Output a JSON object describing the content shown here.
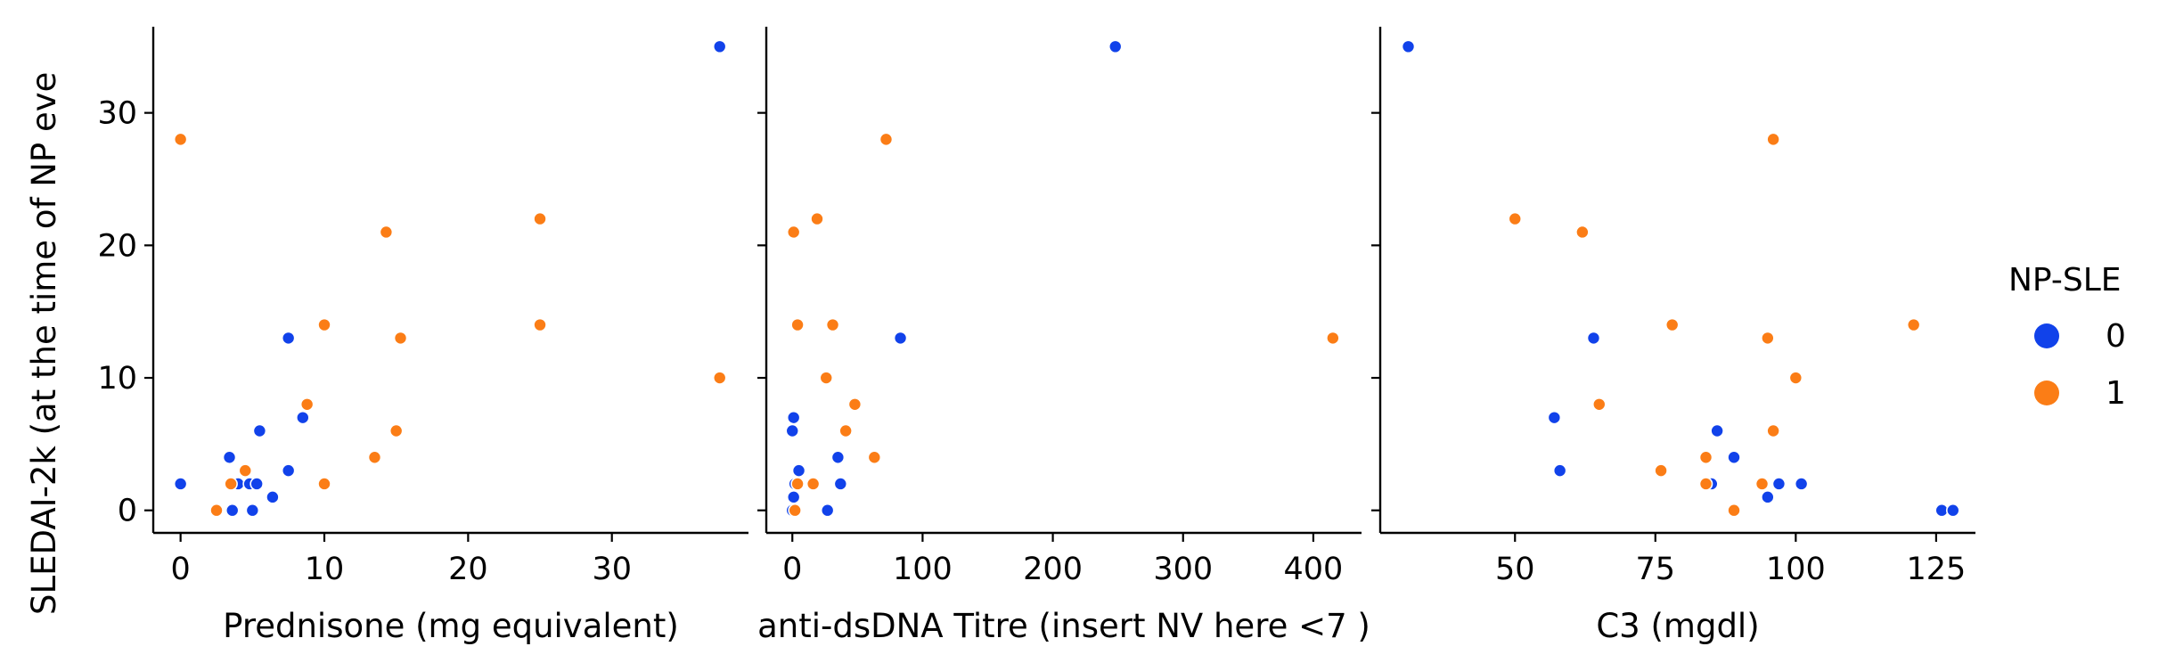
{
  "chart_data": {
    "type": "scatter",
    "y_label": "SLEDAI-2k (at the time of NP eve",
    "y_ticks": [
      "0",
      "10",
      "20",
      "30"
    ],
    "y_values": [
      0,
      10,
      20,
      30
    ],
    "ylim": [
      -1.7,
      36.5
    ],
    "grid": false,
    "legend": {
      "position": "right",
      "title": "NP-SLE",
      "entries": [
        {
          "label": "0",
          "color": "#1142ea"
        },
        {
          "label": "1",
          "color": "#fb7d16"
        }
      ]
    },
    "panels": [
      {
        "xlabel": "Prednisone  (mg equivalent)",
        "xlim": [
          -1.9,
          39.5
        ],
        "x_ticks": [
          "0",
          "10",
          "20",
          "30"
        ],
        "x_values": [
          0,
          10,
          20,
          30
        ],
        "points": [
          {
            "x": 37.5,
            "y": 35,
            "g": 0
          },
          {
            "x": 7.5,
            "y": 13,
            "g": 0
          },
          {
            "x": 8.5,
            "y": 7,
            "g": 0
          },
          {
            "x": 5.5,
            "y": 6,
            "g": 0
          },
          {
            "x": 3.4,
            "y": 4,
            "g": 0
          },
          {
            "x": 7.5,
            "y": 3,
            "g": 0
          },
          {
            "x": 0,
            "y": 2,
            "g": 0
          },
          {
            "x": 4.0,
            "y": 2,
            "g": 0
          },
          {
            "x": 4.8,
            "y": 2,
            "g": 0
          },
          {
            "x": 5.3,
            "y": 2,
            "g": 0
          },
          {
            "x": 6.4,
            "y": 1,
            "g": 0
          },
          {
            "x": 3.6,
            "y": 0,
            "g": 0
          },
          {
            "x": 5.0,
            "y": 0,
            "g": 0
          },
          {
            "x": 0,
            "y": 28,
            "g": 1
          },
          {
            "x": 25,
            "y": 22,
            "g": 1
          },
          {
            "x": 14.3,
            "y": 21,
            "g": 1
          },
          {
            "x": 10,
            "y": 14,
            "g": 1
          },
          {
            "x": 25,
            "y": 14,
            "g": 1
          },
          {
            "x": 15.3,
            "y": 13,
            "g": 1
          },
          {
            "x": 37.5,
            "y": 10,
            "g": 1
          },
          {
            "x": 8.8,
            "y": 8,
            "g": 1
          },
          {
            "x": 15,
            "y": 6,
            "g": 1
          },
          {
            "x": 13.5,
            "y": 4,
            "g": 1
          },
          {
            "x": 4.5,
            "y": 3,
            "g": 1
          },
          {
            "x": 3.5,
            "y": 2,
            "g": 1
          },
          {
            "x": 10,
            "y": 2,
            "g": 1
          },
          {
            "x": 2.5,
            "y": 0,
            "g": 1
          }
        ]
      },
      {
        "xlabel": "anti-dsDNA Titre  (insert NV here <7 )",
        "xlim": [
          -20,
          437
        ],
        "x_ticks": [
          "0",
          "100",
          "200",
          "300",
          "400"
        ],
        "x_values": [
          0,
          100,
          200,
          300,
          400
        ],
        "points": [
          {
            "x": 248,
            "y": 35,
            "g": 0
          },
          {
            "x": 83,
            "y": 13,
            "g": 0
          },
          {
            "x": 1,
            "y": 7,
            "g": 0
          },
          {
            "x": 0,
            "y": 6,
            "g": 0
          },
          {
            "x": 35,
            "y": 4,
            "g": 0
          },
          {
            "x": 5,
            "y": 3,
            "g": 0
          },
          {
            "x": 2,
            "y": 2,
            "g": 0
          },
          {
            "x": 37,
            "y": 2,
            "g": 0
          },
          {
            "x": 1,
            "y": 1,
            "g": 0
          },
          {
            "x": 0,
            "y": 0,
            "g": 0
          },
          {
            "x": 27,
            "y": 0,
            "g": 0
          },
          {
            "x": 72,
            "y": 28,
            "g": 1
          },
          {
            "x": 19,
            "y": 22,
            "g": 1
          },
          {
            "x": 1,
            "y": 21,
            "g": 1
          },
          {
            "x": 4,
            "y": 14,
            "g": 1
          },
          {
            "x": 31,
            "y": 14,
            "g": 1
          },
          {
            "x": 415,
            "y": 13,
            "g": 1
          },
          {
            "x": 26,
            "y": 10,
            "g": 1
          },
          {
            "x": 48,
            "y": 8,
            "g": 1
          },
          {
            "x": 41,
            "y": 6,
            "g": 1
          },
          {
            "x": 63,
            "y": 4,
            "g": 1
          },
          {
            "x": 4,
            "y": 2,
            "g": 1
          },
          {
            "x": 16,
            "y": 2,
            "g": 1
          },
          {
            "x": 2,
            "y": 0,
            "g": 1
          }
        ]
      },
      {
        "xlabel": "C3 (mgdl)",
        "xlim": [
          26,
          132
        ],
        "x_ticks": [
          "50",
          "75",
          "100",
          "125"
        ],
        "x_values": [
          50,
          75,
          100,
          125
        ],
        "points": [
          {
            "x": 31,
            "y": 35,
            "g": 0
          },
          {
            "x": 64,
            "y": 13,
            "g": 0
          },
          {
            "x": 57,
            "y": 7,
            "g": 0
          },
          {
            "x": 86,
            "y": 6,
            "g": 0
          },
          {
            "x": 89,
            "y": 4,
            "g": 0
          },
          {
            "x": 58,
            "y": 3,
            "g": 0
          },
          {
            "x": 85,
            "y": 2,
            "g": 0
          },
          {
            "x": 97,
            "y": 2,
            "g": 0
          },
          {
            "x": 101,
            "y": 2,
            "g": 0
          },
          {
            "x": 95,
            "y": 1,
            "g": 0
          },
          {
            "x": 126,
            "y": 0,
            "g": 0
          },
          {
            "x": 128,
            "y": 0,
            "g": 0
          },
          {
            "x": 96,
            "y": 28,
            "g": 1
          },
          {
            "x": 50,
            "y": 22,
            "g": 1
          },
          {
            "x": 62,
            "y": 21,
            "g": 1
          },
          {
            "x": 78,
            "y": 14,
            "g": 1
          },
          {
            "x": 121,
            "y": 14,
            "g": 1
          },
          {
            "x": 95,
            "y": 13,
            "g": 1
          },
          {
            "x": 100,
            "y": 10,
            "g": 1
          },
          {
            "x": 65,
            "y": 8,
            "g": 1
          },
          {
            "x": 96,
            "y": 6,
            "g": 1
          },
          {
            "x": 84,
            "y": 4,
            "g": 1
          },
          {
            "x": 76,
            "y": 3,
            "g": 1
          },
          {
            "x": 84,
            "y": 2,
            "g": 1
          },
          {
            "x": 94,
            "y": 2,
            "g": 1
          },
          {
            "x": 89,
            "y": 0,
            "g": 1
          }
        ]
      }
    ]
  }
}
